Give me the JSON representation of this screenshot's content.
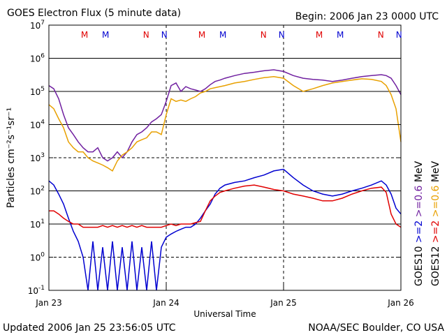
{
  "header": {
    "title": "GOES Electron Flux (5 minute data)",
    "begin": "Begin: 2006 Jan 23 0000 UTC"
  },
  "footer": {
    "updated": "Updated 2006 Jan 25 23:56:05 UTC",
    "credit": "NOAA/SEC Boulder, CO USA"
  },
  "chart_data": {
    "type": "line",
    "title": "GOES Electron Flux (5 minute data)",
    "xlabel": "Universal Time",
    "ylabel": "Particles cm⁻²s⁻¹sr⁻¹",
    "y_scale": "log",
    "ylim": [
      0.1,
      10000000
    ],
    "xlim": [
      0,
      72
    ],
    "x_unit": "hours since 2006 Jan 23 0000 UTC",
    "x_ticks": [
      {
        "x": 0,
        "label": "Jan 23"
      },
      {
        "x": 24,
        "label": "Jan 24"
      },
      {
        "x": 48,
        "label": "Jan 25"
      },
      {
        "x": 72,
        "label": "Jan 26"
      }
    ],
    "y_ticks": [
      {
        "base": "10",
        "exp": "-1"
      },
      {
        "base": "10",
        "exp": "0"
      },
      {
        "base": "10",
        "exp": "1"
      },
      {
        "base": "10",
        "exp": "2"
      },
      {
        "base": "10",
        "exp": "3"
      },
      {
        "base": "10",
        "exp": "4"
      },
      {
        "base": "10",
        "exp": "5"
      },
      {
        "base": "10",
        "exp": "6"
      },
      {
        "base": "10",
        "exp": "7"
      }
    ],
    "grid": true,
    "markers": [
      {
        "label": "M",
        "x": 7.3,
        "color": "#e00000"
      },
      {
        "label": "M",
        "x": 11.6,
        "color": "#0000d0"
      },
      {
        "label": "N",
        "x": 19.9,
        "color": "#e00000"
      },
      {
        "label": "N",
        "x": 23.6,
        "color": "#0000d0"
      },
      {
        "label": "M",
        "x": 31.3,
        "color": "#e00000"
      },
      {
        "label": "M",
        "x": 35.6,
        "color": "#0000d0"
      },
      {
        "label": "N",
        "x": 43.9,
        "color": "#e00000"
      },
      {
        "label": "N",
        "x": 47.6,
        "color": "#0000d0"
      },
      {
        "label": "M",
        "x": 55.3,
        "color": "#e00000"
      },
      {
        "label": "M",
        "x": 59.6,
        "color": "#0000d0"
      },
      {
        "label": "N",
        "x": 67.9,
        "color": "#e00000"
      },
      {
        "label": "N",
        "x": 71.6,
        "color": "#0000d0"
      }
    ],
    "legend": {
      "placement": "right",
      "groups": [
        {
          "label": "GOES10",
          "items": [
            {
              "text": ">=2",
              "color": "#0000d0"
            },
            {
              "text": ">=0.6",
              "color": "#7020a0"
            }
          ]
        },
        {
          "label": "GOES12",
          "items": [
            {
              "text": ">=2",
              "color": "#e00000"
            },
            {
              "text": ">=0.6",
              "color": "#e8a000"
            }
          ]
        }
      ],
      "unit": "MeV"
    },
    "series": [
      {
        "color": "#7020a0",
        "x": [
          0,
          1,
          2,
          3,
          4,
          5,
          6,
          7,
          8,
          9,
          10,
          11,
          12,
          13,
          14,
          15,
          16,
          17,
          18,
          19,
          20,
          21,
          22,
          23,
          24,
          25,
          26,
          27,
          28,
          29,
          30,
          31,
          32,
          33,
          34,
          35,
          36,
          38,
          40,
          42,
          44,
          46,
          48,
          50,
          52,
          54,
          56,
          58,
          60,
          62,
          64,
          66,
          68,
          69,
          70,
          71,
          72
        ],
        "values": [
          150000,
          120000,
          60000,
          20000,
          8000,
          5000,
          3000,
          2000,
          1500,
          1500,
          2000,
          1000,
          800,
          1000,
          1500,
          1000,
          1500,
          3000,
          5000,
          6000,
          8000,
          12000,
          15000,
          20000,
          50000,
          150000,
          180000,
          100000,
          140000,
          120000,
          110000,
          100000,
          120000,
          160000,
          200000,
          220000,
          250000,
          300000,
          350000,
          380000,
          420000,
          450000,
          400000,
          300000,
          250000,
          230000,
          220000,
          200000,
          220000,
          250000,
          280000,
          300000,
          320000,
          300000,
          250000,
          150000,
          80000
        ]
      },
      {
        "color": "#e8a000",
        "x": [
          0,
          1,
          2,
          3,
          4,
          5,
          6,
          7,
          8,
          9,
          10,
          11,
          12,
          13,
          14,
          15,
          16,
          17,
          18,
          19,
          20,
          21,
          22,
          23,
          24,
          25,
          26,
          27,
          28,
          29,
          30,
          31,
          32,
          33,
          34,
          35,
          36,
          38,
          40,
          42,
          44,
          46,
          48,
          50,
          52,
          54,
          56,
          58,
          60,
          62,
          64,
          66,
          68,
          69,
          70,
          71,
          72
        ],
        "values": [
          40000,
          30000,
          15000,
          8000,
          3000,
          2000,
          1500,
          1500,
          1000,
          800,
          700,
          600,
          500,
          400,
          800,
          1200,
          1500,
          2000,
          3000,
          3500,
          4000,
          6000,
          6000,
          5000,
          20000,
          60000,
          50000,
          55000,
          50000,
          60000,
          70000,
          90000,
          100000,
          120000,
          130000,
          140000,
          150000,
          180000,
          200000,
          230000,
          260000,
          280000,
          250000,
          150000,
          100000,
          120000,
          150000,
          180000,
          200000,
          220000,
          240000,
          230000,
          200000,
          150000,
          80000,
          30000,
          3000
        ]
      },
      {
        "color": "#0000d0",
        "x": [
          0,
          1,
          2,
          3,
          4,
          5,
          6,
          7,
          8,
          9,
          10,
          11,
          12,
          13,
          14,
          15,
          16,
          17,
          18,
          19,
          20,
          21,
          22,
          23,
          24,
          25,
          26,
          27,
          28,
          29,
          30,
          31,
          32,
          33,
          34,
          35,
          36,
          38,
          40,
          42,
          44,
          46,
          48,
          50,
          52,
          54,
          56,
          58,
          60,
          62,
          64,
          66,
          68,
          69,
          70,
          71,
          72
        ],
        "values": [
          200,
          150,
          80,
          40,
          15,
          6,
          3,
          1,
          0.1,
          3,
          0.1,
          2,
          0.1,
          3,
          0.1,
          2,
          0.1,
          3,
          0.1,
          2,
          0.1,
          3,
          0.1,
          2,
          4,
          5,
          6,
          7,
          8,
          8,
          10,
          15,
          25,
          40,
          80,
          120,
          150,
          180,
          200,
          250,
          300,
          400,
          450,
          250,
          150,
          100,
          80,
          70,
          80,
          100,
          120,
          150,
          200,
          150,
          80,
          30,
          20
        ]
      },
      {
        "color": "#e00000",
        "x": [
          0,
          1,
          2,
          3,
          4,
          5,
          6,
          7,
          8,
          9,
          10,
          11,
          12,
          13,
          14,
          15,
          16,
          17,
          18,
          19,
          20,
          21,
          22,
          23,
          24,
          25,
          26,
          27,
          28,
          29,
          30,
          31,
          32,
          33,
          34,
          35,
          36,
          38,
          40,
          42,
          44,
          46,
          48,
          50,
          52,
          54,
          56,
          58,
          60,
          62,
          64,
          66,
          68,
          69,
          70,
          71,
          72
        ],
        "values": [
          25,
          25,
          20,
          15,
          12,
          10,
          10,
          8,
          8,
          8,
          8,
          9,
          8,
          9,
          8,
          9,
          8,
          9,
          8,
          9,
          8,
          8,
          8,
          8,
          9,
          10,
          9,
          10,
          10,
          10,
          11,
          12,
          25,
          50,
          70,
          90,
          100,
          120,
          140,
          150,
          130,
          110,
          100,
          80,
          70,
          60,
          50,
          50,
          60,
          80,
          100,
          120,
          130,
          90,
          20,
          10,
          8
        ]
      }
    ]
  }
}
